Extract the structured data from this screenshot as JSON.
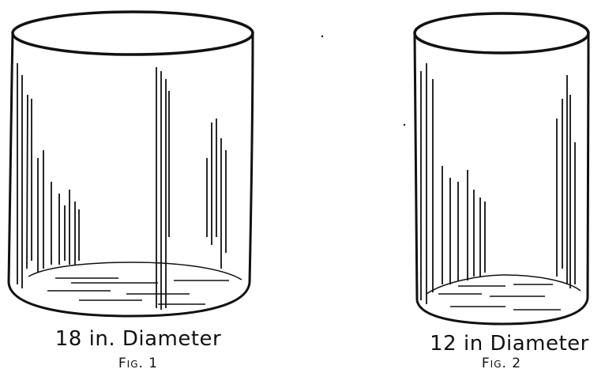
{
  "figures": [
    {
      "caption": "18 in. Diameter",
      "label": "Fig. 1"
    },
    {
      "caption": "12 in Diameter",
      "label": "Fig. 2"
    }
  ]
}
